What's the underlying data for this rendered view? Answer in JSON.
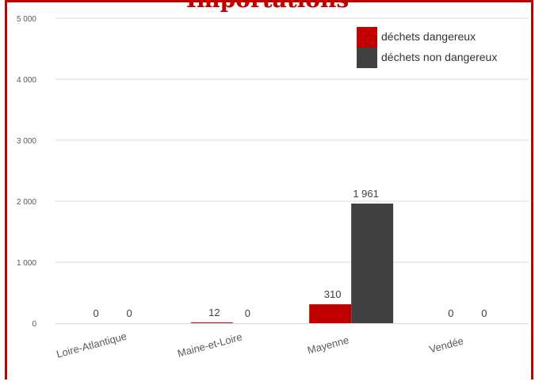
{
  "chart_data": {
    "type": "bar",
    "title": "Importations",
    "categories": [
      "Loire-Atlantique",
      "Maine-et-Loire",
      "Mayenne",
      "Vendée"
    ],
    "series": [
      {
        "name": "déchets dangereux",
        "color": "#c00000",
        "values": [
          0,
          12,
          310,
          0
        ],
        "labels": [
          "0",
          "12",
          "310",
          "0"
        ]
      },
      {
        "name": "déchets non dangereux",
        "color": "#404040",
        "values": [
          0,
          0,
          1961,
          0
        ],
        "labels": [
          "0",
          "0",
          "1 961",
          "0"
        ]
      }
    ],
    "ylim": [
      0,
      5000
    ],
    "yticks": [
      0,
      1000,
      2000,
      3000,
      4000,
      5000
    ],
    "ytick_labels": [
      "0",
      "1 000",
      "2 000",
      "3 000",
      "4 000",
      "5 000"
    ],
    "grid": true,
    "legend": "top-right",
    "xlabel": "",
    "ylabel": ""
  }
}
